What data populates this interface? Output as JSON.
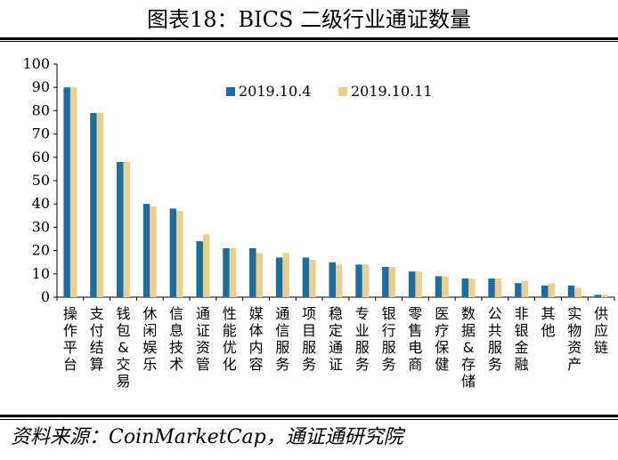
{
  "page": {
    "title": "图表18：BICS 二级行业通证数量",
    "source": "资料来源：CoinMarketCap，通证通研究院"
  },
  "chart_data": {
    "type": "bar",
    "title": "图表18：BICS 二级行业通证数量",
    "xlabel": "",
    "ylabel": "",
    "ylim": [
      0,
      100
    ],
    "yticks": [
      "0",
      "10",
      "20",
      "30",
      "40",
      "50",
      "60",
      "70",
      "80",
      "90",
      "100"
    ],
    "grid": false,
    "legend_position": "top-center",
    "categories": [
      "操作平台",
      "支付结算",
      "钱包&交易",
      "休闲娱乐",
      "信息技术",
      "通证资管",
      "性能优化",
      "媒体内容",
      "通信服务",
      "项目服务",
      "稳定通证",
      "专业服务",
      "银行服务",
      "零售电商",
      "医疗保健",
      "数据&存储",
      "公共服务",
      "非银金融",
      "其他",
      "实物资产",
      "供应链"
    ],
    "series": [
      {
        "name": "2019.10.4",
        "color": "#1f6b9b",
        "values": [
          90,
          79,
          58,
          40,
          38,
          24,
          21,
          21,
          17,
          17,
          15,
          14,
          13,
          11,
          9,
          8,
          8,
          6,
          5,
          5,
          1
        ]
      },
      {
        "name": "2019.10.11",
        "color": "#e9cf94",
        "values": [
          90,
          79,
          58,
          39,
          37,
          27,
          21,
          19,
          19,
          16,
          14,
          14,
          13,
          11,
          9,
          8,
          8,
          7,
          6,
          4,
          1
        ]
      }
    ]
  }
}
